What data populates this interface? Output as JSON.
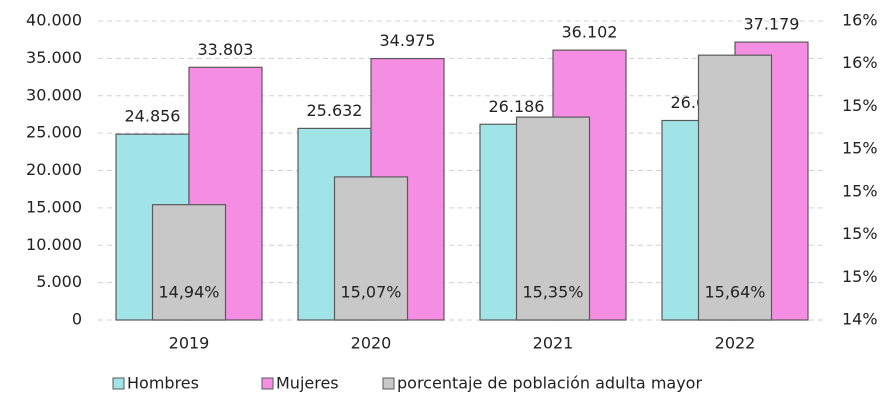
{
  "chart_data": {
    "type": "bar",
    "categories": [
      "2019",
      "2020",
      "2021",
      "2022"
    ],
    "series": [
      {
        "name": "Hombres",
        "color": "#a0e4e8",
        "values": [
          24856,
          25632,
          26186,
          26689
        ],
        "value_labels": [
          "24.856",
          "25.632",
          "26.186",
          "26.689"
        ]
      },
      {
        "name": "Mujeres",
        "color": "#f58de2",
        "values": [
          33803,
          34975,
          36102,
          37179
        ],
        "value_labels": [
          "33.803",
          "34.975",
          "36.102",
          "37.179"
        ]
      },
      {
        "name": "porcentaje de población adulta mayor",
        "color": "#c8c8c8",
        "axis": "y2",
        "values": [
          14.94,
          15.07,
          15.35,
          15.64
        ],
        "value_labels": [
          "14,94%",
          "15,07%",
          "15,35%",
          "15,64%"
        ]
      }
    ],
    "ylim": [
      0,
      40000
    ],
    "yticks": [
      0,
      {
        "value": 5000,
        "label": "5.000"
      },
      {
        "value": 10000,
        "label": "10.000"
      },
      {
        "value": 15000,
        "label": "15.000"
      },
      {
        "value": 20000,
        "label": "20.000"
      },
      {
        "value": 25000,
        "label": "25.000"
      },
      {
        "value": 30000,
        "label": "30.000"
      },
      {
        "value": 35000,
        "label": "35.000"
      },
      {
        "value": 40000,
        "label": "40.000"
      }
    ],
    "y2lim": [
      14.4,
      15.8
    ],
    "y2ticks": [
      {
        "value": 14.4,
        "label": "14%"
      },
      {
        "value": 14.6,
        "label": "15%"
      },
      {
        "value": 14.8,
        "label": "15%"
      },
      {
        "value": 15.0,
        "label": "15%"
      },
      {
        "value": 15.2,
        "label": "15%"
      },
      {
        "value": 15.4,
        "label": "15%"
      },
      {
        "value": 15.6,
        "label": "16%"
      },
      {
        "value": 15.8,
        "label": "16%"
      }
    ],
    "grid": true,
    "legend": "bottom"
  }
}
